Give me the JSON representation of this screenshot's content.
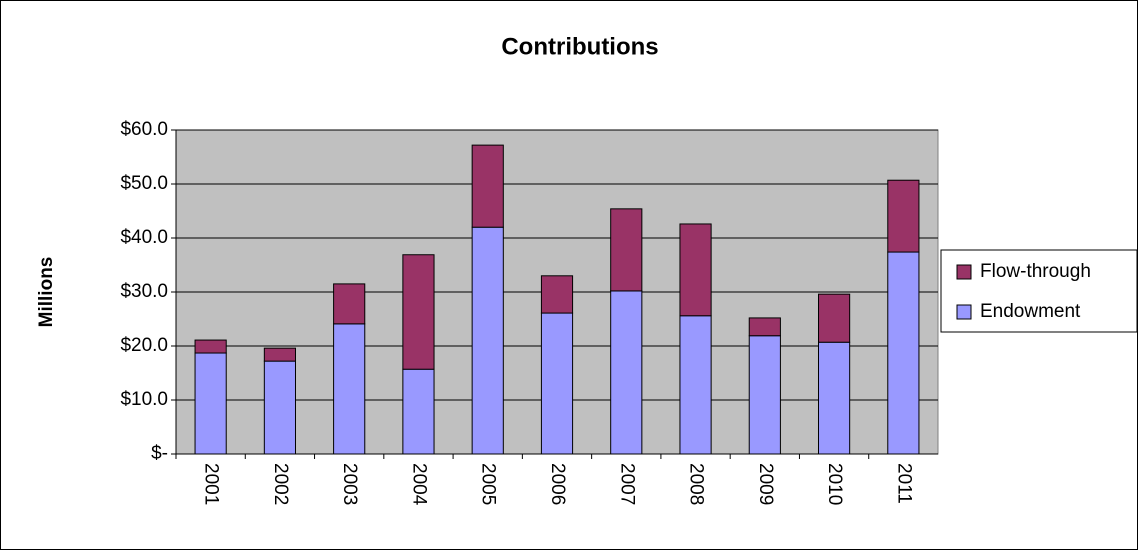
{
  "chart_data": {
    "type": "stacked_bar",
    "title": "Contributions",
    "y_label": "Millions",
    "categories": [
      "2001",
      "2002",
      "2003",
      "2004",
      "2005",
      "2006",
      "2007",
      "2008",
      "2009",
      "2010",
      "2011"
    ],
    "series": [
      {
        "name": "Endowment",
        "color": "#9999ff",
        "values": [
          18.7,
          17.2,
          24.1,
          15.7,
          42.0,
          26.1,
          30.2,
          25.6,
          21.9,
          20.7,
          37.4
        ]
      },
      {
        "name": "Flow-through",
        "color": "#993366",
        "values": [
          2.4,
          2.4,
          7.4,
          21.2,
          15.2,
          6.9,
          15.2,
          17.0,
          3.3,
          8.9,
          13.3
        ]
      }
    ],
    "ylim": [
      0,
      60
    ],
    "yticks": [
      {
        "value": 0,
        "label": "$-"
      },
      {
        "value": 10,
        "label": "$10.0"
      },
      {
        "value": 20,
        "label": "$20.0"
      },
      {
        "value": 30,
        "label": "$30.0"
      },
      {
        "value": 40,
        "label": "$40.0"
      },
      {
        "value": 50,
        "label": "$50.0"
      },
      {
        "value": 60,
        "label": "$60.0"
      }
    ],
    "grid": true,
    "legend": "right",
    "plot_background": "#c0c0c0"
  }
}
